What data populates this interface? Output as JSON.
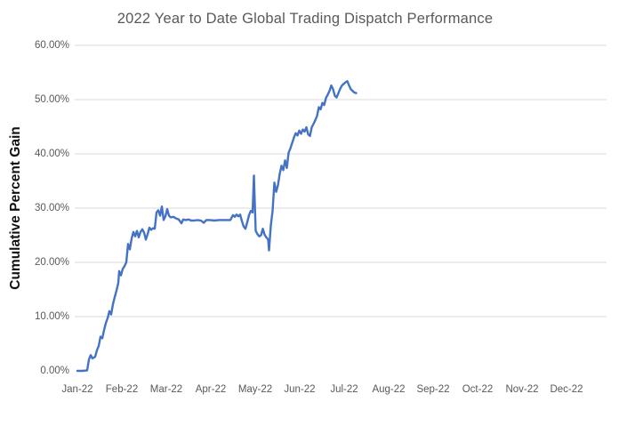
{
  "chart_data": {
    "type": "line",
    "title": "2022 Year to Date Global Trading Dispatch Performance",
    "xlabel": "",
    "ylabel": "Cumulative Percent Gain",
    "legend": "none",
    "grid": "horizontal",
    "x_axis": {
      "tick_labels": [
        "Jan-22",
        "Feb-22",
        "Mar-22",
        "Apr-22",
        "May-22",
        "Jun-22",
        "Jul-22",
        "Aug-22",
        "Sep-22",
        "Oct-22",
        "Nov-22",
        "Dec-22"
      ],
      "range_months_since_jan1_2022": [
        0,
        11.9
      ]
    },
    "y_axis": {
      "tick_labels": [
        "0.00%",
        "10.00%",
        "20.00%",
        "30.00%",
        "40.00%",
        "50.00%",
        "60.00%"
      ],
      "tick_values": [
        0,
        10,
        20,
        30,
        40,
        50,
        60
      ],
      "min": 0,
      "max": 60,
      "unit": "percent",
      "gridlines_at": [
        10,
        20,
        30,
        40,
        50,
        60
      ]
    },
    "series": [
      {
        "name": "Cumulative Percent Gain",
        "x_unit": "months_since_2022-01-01 (0 = Jan 1, 1 = Feb 1, ...)",
        "y_unit": "percent",
        "points": [
          [
            0.0,
            0.0
          ],
          [
            0.12,
            0.0
          ],
          [
            0.22,
            0.1
          ],
          [
            0.26,
            2.1
          ],
          [
            0.3,
            2.9
          ],
          [
            0.34,
            2.3
          ],
          [
            0.4,
            2.6
          ],
          [
            0.44,
            3.8
          ],
          [
            0.48,
            4.6
          ],
          [
            0.52,
            6.3
          ],
          [
            0.56,
            6.0
          ],
          [
            0.6,
            7.5
          ],
          [
            0.64,
            8.8
          ],
          [
            0.68,
            9.7
          ],
          [
            0.72,
            11.0
          ],
          [
            0.76,
            10.4
          ],
          [
            0.8,
            12.3
          ],
          [
            0.84,
            13.6
          ],
          [
            0.88,
            14.8
          ],
          [
            0.92,
            16.2
          ],
          [
            0.94,
            18.4
          ],
          [
            0.98,
            17.6
          ],
          [
            1.02,
            18.8
          ],
          [
            1.06,
            19.3
          ],
          [
            1.1,
            20.0
          ],
          [
            1.14,
            23.4
          ],
          [
            1.18,
            22.4
          ],
          [
            1.22,
            24.4
          ],
          [
            1.26,
            25.6
          ],
          [
            1.3,
            24.8
          ],
          [
            1.34,
            25.8
          ],
          [
            1.38,
            24.6
          ],
          [
            1.42,
            25.6
          ],
          [
            1.46,
            26.1
          ],
          [
            1.5,
            25.5
          ],
          [
            1.54,
            24.2
          ],
          [
            1.58,
            25.2
          ],
          [
            1.62,
            26.4
          ],
          [
            1.66,
            26.0
          ],
          [
            1.7,
            26.3
          ],
          [
            1.74,
            26.2
          ],
          [
            1.78,
            29.2
          ],
          [
            1.82,
            29.6
          ],
          [
            1.86,
            28.6
          ],
          [
            1.9,
            30.3
          ],
          [
            1.94,
            27.8
          ],
          [
            1.98,
            28.5
          ],
          [
            2.02,
            29.8
          ],
          [
            2.06,
            28.6
          ],
          [
            2.1,
            28.3
          ],
          [
            2.16,
            28.4
          ],
          [
            2.22,
            28.1
          ],
          [
            2.28,
            27.9
          ],
          [
            2.34,
            27.2
          ],
          [
            2.38,
            27.9
          ],
          [
            2.44,
            27.8
          ],
          [
            2.5,
            27.9
          ],
          [
            2.56,
            27.7
          ],
          [
            2.62,
            27.7
          ],
          [
            2.7,
            27.8
          ],
          [
            2.78,
            27.7
          ],
          [
            2.84,
            27.3
          ],
          [
            2.9,
            27.8
          ],
          [
            2.98,
            27.8
          ],
          [
            3.08,
            27.7
          ],
          [
            3.18,
            27.8
          ],
          [
            3.28,
            27.8
          ],
          [
            3.38,
            27.8
          ],
          [
            3.44,
            27.8
          ],
          [
            3.5,
            28.7
          ],
          [
            3.54,
            28.4
          ],
          [
            3.58,
            28.8
          ],
          [
            3.62,
            28.5
          ],
          [
            3.66,
            28.8
          ],
          [
            3.7,
            27.6
          ],
          [
            3.74,
            26.6
          ],
          [
            3.78,
            26.2
          ],
          [
            3.82,
            27.4
          ],
          [
            3.86,
            28.7
          ],
          [
            3.9,
            29.5
          ],
          [
            3.94,
            29.2
          ],
          [
            3.97,
            36.0
          ],
          [
            4.01,
            25.8
          ],
          [
            4.05,
            25.2
          ],
          [
            4.09,
            24.8
          ],
          [
            4.13,
            25.0
          ],
          [
            4.17,
            26.2
          ],
          [
            4.21,
            25.1
          ],
          [
            4.25,
            24.6
          ],
          [
            4.29,
            24.2
          ],
          [
            4.31,
            22.2
          ],
          [
            4.35,
            26.8
          ],
          [
            4.39,
            29.5
          ],
          [
            4.43,
            34.7
          ],
          [
            4.47,
            33.0
          ],
          [
            4.51,
            34.2
          ],
          [
            4.55,
            36.3
          ],
          [
            4.59,
            37.8
          ],
          [
            4.63,
            37.0
          ],
          [
            4.67,
            38.8
          ],
          [
            4.71,
            37.4
          ],
          [
            4.75,
            40.2
          ],
          [
            4.79,
            41.0
          ],
          [
            4.83,
            42.0
          ],
          [
            4.87,
            43.0
          ],
          [
            4.91,
            43.8
          ],
          [
            4.95,
            43.4
          ],
          [
            4.99,
            44.3
          ],
          [
            5.03,
            43.7
          ],
          [
            5.07,
            44.5
          ],
          [
            5.11,
            44.1
          ],
          [
            5.15,
            44.9
          ],
          [
            5.19,
            43.6
          ],
          [
            5.23,
            43.3
          ],
          [
            5.27,
            44.9
          ],
          [
            5.31,
            45.5
          ],
          [
            5.35,
            46.2
          ],
          [
            5.39,
            47.0
          ],
          [
            5.43,
            48.6
          ],
          [
            5.47,
            48.2
          ],
          [
            5.51,
            49.4
          ],
          [
            5.55,
            49.0
          ],
          [
            5.59,
            50.3
          ],
          [
            5.63,
            50.9
          ],
          [
            5.67,
            51.6
          ],
          [
            5.71,
            52.6
          ],
          [
            5.75,
            51.9
          ],
          [
            5.79,
            50.7
          ],
          [
            5.83,
            50.4
          ],
          [
            5.87,
            51.2
          ],
          [
            5.91,
            52.0
          ],
          [
            5.95,
            52.6
          ],
          [
            5.99,
            52.9
          ],
          [
            6.03,
            53.2
          ],
          [
            6.07,
            53.4
          ],
          [
            6.11,
            52.6
          ],
          [
            6.15,
            51.9
          ],
          [
            6.19,
            51.6
          ],
          [
            6.23,
            51.3
          ],
          [
            6.27,
            51.2
          ]
        ]
      }
    ]
  },
  "colors": {
    "background": "#FFFFFF",
    "line": "#4472C4",
    "gridline": "#D9D9D9",
    "title_text": "#595959",
    "axis_tick_text": "#595959",
    "y_axis_title_text": "#111111"
  }
}
